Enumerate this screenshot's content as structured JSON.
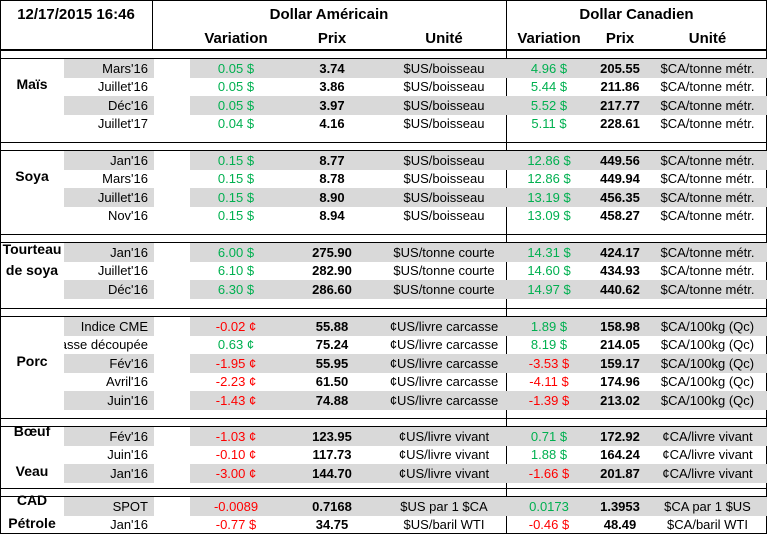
{
  "header": {
    "datetime": "12/17/2015 16:46",
    "usd_group": "Dollar Américain",
    "cad_group": "Dollar Canadien",
    "col_variation": "Variation",
    "col_prix": "Prix",
    "col_unite": "Unité"
  },
  "colors": {
    "positive": "#00b050",
    "negative": "#ff0000",
    "shade": "#d9d9d9"
  },
  "sections": [
    {
      "label": "Maïs",
      "rows": [
        {
          "contract": "Mars'16",
          "usd_var": "0.05 $",
          "usd_price": "3.74",
          "usd_unit": "$US/boisseau",
          "cad_var": "4.96 $",
          "cad_price": "205.55",
          "cad_unit": "$CA/tonne métr."
        },
        {
          "contract": "Juillet'16",
          "usd_var": "0.05 $",
          "usd_price": "3.86",
          "usd_unit": "$US/boisseau",
          "cad_var": "5.44 $",
          "cad_price": "211.86",
          "cad_unit": "$CA/tonne métr."
        },
        {
          "contract": "Déc'16",
          "usd_var": "0.05 $",
          "usd_price": "3.97",
          "usd_unit": "$US/boisseau",
          "cad_var": "5.52 $",
          "cad_price": "217.77",
          "cad_unit": "$CA/tonne métr."
        },
        {
          "contract": "Juillet'17",
          "usd_var": "0.04 $",
          "usd_price": "4.16",
          "usd_unit": "$US/boisseau",
          "cad_var": "5.11 $",
          "cad_price": "228.61",
          "cad_unit": "$CA/tonne métr."
        }
      ]
    },
    {
      "label": "Soya",
      "rows": [
        {
          "contract": "Jan'16",
          "usd_var": "0.15 $",
          "usd_price": "8.77",
          "usd_unit": "$US/boisseau",
          "cad_var": "12.86 $",
          "cad_price": "449.56",
          "cad_unit": "$CA/tonne métr."
        },
        {
          "contract": "Mars'16",
          "usd_var": "0.15 $",
          "usd_price": "8.78",
          "usd_unit": "$US/boisseau",
          "cad_var": "12.86 $",
          "cad_price": "449.94",
          "cad_unit": "$CA/tonne métr."
        },
        {
          "contract": "Juillet'16",
          "usd_var": "0.15 $",
          "usd_price": "8.90",
          "usd_unit": "$US/boisseau",
          "cad_var": "13.19 $",
          "cad_price": "456.35",
          "cad_unit": "$CA/tonne métr."
        },
        {
          "contract": "Nov'16",
          "usd_var": "0.15 $",
          "usd_price": "8.94",
          "usd_unit": "$US/boisseau",
          "cad_var": "13.09 $",
          "cad_price": "458.27",
          "cad_unit": "$CA/tonne métr."
        }
      ]
    },
    {
      "label_line1": "Tourteau",
      "label_line2": "de soya",
      "rows": [
        {
          "contract": "Jan'16",
          "usd_var": "6.00 $",
          "usd_price": "275.90",
          "usd_unit": "$US/tonne courte",
          "cad_var": "14.31 $",
          "cad_price": "424.17",
          "cad_unit": "$CA/tonne métr."
        },
        {
          "contract": "Juillet'16",
          "usd_var": "6.10 $",
          "usd_price": "282.90",
          "usd_unit": "$US/tonne courte",
          "cad_var": "14.60 $",
          "cad_price": "434.93",
          "cad_unit": "$CA/tonne métr."
        },
        {
          "contract": "Déc'16",
          "usd_var": "6.30 $",
          "usd_price": "286.60",
          "usd_unit": "$US/tonne courte",
          "cad_var": "14.97 $",
          "cad_price": "440.62",
          "cad_unit": "$CA/tonne métr."
        }
      ]
    },
    {
      "label": "Porc",
      "rows": [
        {
          "contract": "Indice CME",
          "usd_var": "-0.02 ¢",
          "usd_price": "55.88",
          "usd_unit": "¢US/livre carcasse",
          "cad_var": "1.89 $",
          "cad_price": "158.98",
          "cad_unit": "$CA/100kg (Qc)"
        },
        {
          "contract": "Carcasse découpée",
          "usd_var": "0.63 ¢",
          "usd_price": "75.24",
          "usd_unit": "¢US/livre carcasse",
          "cad_var": "8.19 $",
          "cad_price": "214.05",
          "cad_unit": "$CA/100kg (Qc)"
        },
        {
          "contract": "Fév'16",
          "usd_var": "-1.95 ¢",
          "usd_price": "55.95",
          "usd_unit": "¢US/livre carcasse",
          "cad_var": "-3.53 $",
          "cad_price": "159.17",
          "cad_unit": "$CA/100kg (Qc)"
        },
        {
          "contract": "Avril'16",
          "usd_var": "-2.23 ¢",
          "usd_price": "61.50",
          "usd_unit": "¢US/livre carcasse",
          "cad_var": "-4.11 $",
          "cad_price": "174.96",
          "cad_unit": "$CA/100kg (Qc)"
        },
        {
          "contract": "Juin'16",
          "usd_var": "-1.43 ¢",
          "usd_price": "74.88",
          "usd_unit": "¢US/livre carcasse",
          "cad_var": "-1.39 $",
          "cad_price": "213.02",
          "cad_unit": "$CA/100kg (Qc)"
        }
      ]
    },
    {
      "label_boeuf": "Bœuf",
      "label_veau": "Veau",
      "rows": [
        {
          "contract": "Fév'16",
          "usd_var": "-1.03 ¢",
          "usd_price": "123.95",
          "usd_unit": "¢US/livre vivant",
          "cad_var": "0.71 $",
          "cad_price": "172.92",
          "cad_unit": "¢CA/livre vivant"
        },
        {
          "contract": "Juin'16",
          "usd_var": "-0.10 ¢",
          "usd_price": "117.73",
          "usd_unit": "¢US/livre vivant",
          "cad_var": "1.88 $",
          "cad_price": "164.24",
          "cad_unit": "¢CA/livre vivant"
        },
        {
          "contract": "Jan'16",
          "usd_var": "-3.00 ¢",
          "usd_price": "144.70",
          "usd_unit": "¢US/livre vivant",
          "cad_var": "-1.66 $",
          "cad_price": "201.87",
          "cad_unit": "¢CA/livre vivant"
        }
      ]
    },
    {
      "label_cad": "CAD",
      "label_petrole": "Pétrole",
      "rows": [
        {
          "contract": "SPOT",
          "usd_var": "-0.0089",
          "usd_price": "0.7168",
          "usd_unit": "$US par 1 $CA",
          "cad_var": "0.0173",
          "cad_price": "1.3953",
          "cad_unit": "$CA par 1 $US"
        },
        {
          "contract": "Jan'16",
          "usd_var": "-0.77 $",
          "usd_price": "34.75",
          "usd_unit": "$US/baril WTI",
          "cad_var": "-0.46 $",
          "cad_price": "48.49",
          "cad_unit": "$CA/baril WTI"
        }
      ]
    }
  ]
}
